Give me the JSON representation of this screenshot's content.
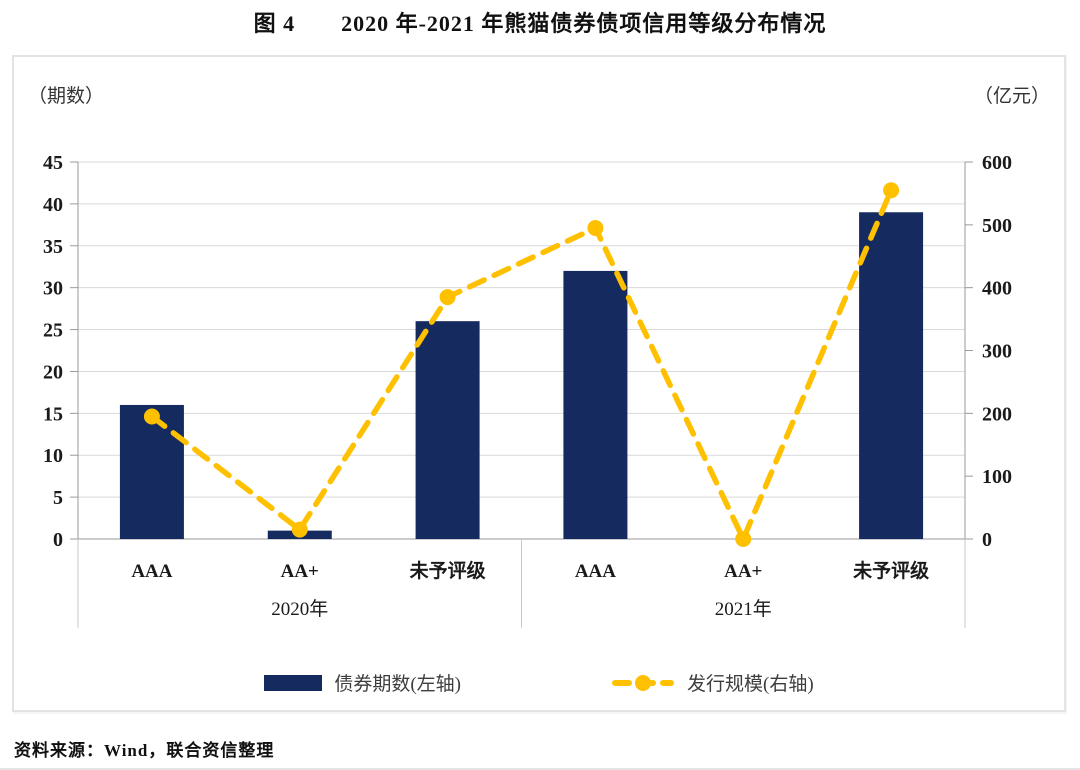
{
  "title": "图 4　　2020 年-2021 年熊猫债券债项信用等级分布情况",
  "source_note": "资料来源：Wind，联合资信整理",
  "colors": {
    "bar": "#152a5e",
    "line": "#ffc000",
    "grid": "#d9d9d9",
    "axis": "#9a9a9a",
    "divider": "#c9c9c9",
    "text": "#1a1a1a"
  },
  "chart_data": {
    "type": "bar",
    "subtype": "bar+line dual axis",
    "categories": [
      "AAA",
      "AA+",
      "未予评级",
      "AAA",
      "AA+",
      "未予评级"
    ],
    "groups": [
      {
        "label": "2020年",
        "start": 0,
        "end": 2
      },
      {
        "label": "2021年",
        "start": 3,
        "end": 5
      }
    ],
    "series": [
      {
        "name": "债券期数(左轴)",
        "type": "bar",
        "axis": "left",
        "color": "#152a5e",
        "values": [
          16,
          1,
          26,
          32,
          0,
          39
        ]
      },
      {
        "name": "发行规模(右轴)",
        "type": "line",
        "axis": "right",
        "color": "#ffc000",
        "values": [
          195,
          15,
          385,
          495,
          0,
          555
        ]
      }
    ],
    "left_axis": {
      "label": "（期数）",
      "min": 0,
      "max": 45,
      "ticks": [
        0,
        5,
        10,
        15,
        20,
        25,
        30,
        35,
        40,
        45
      ]
    },
    "right_axis": {
      "label": "（亿元）",
      "min": 0,
      "max": 600,
      "ticks": [
        0,
        100,
        200,
        300,
        400,
        500,
        600
      ]
    },
    "grid": true,
    "legend_position": "bottom",
    "legend": [
      "债券期数(左轴)",
      "发行规模(右轴)"
    ]
  }
}
